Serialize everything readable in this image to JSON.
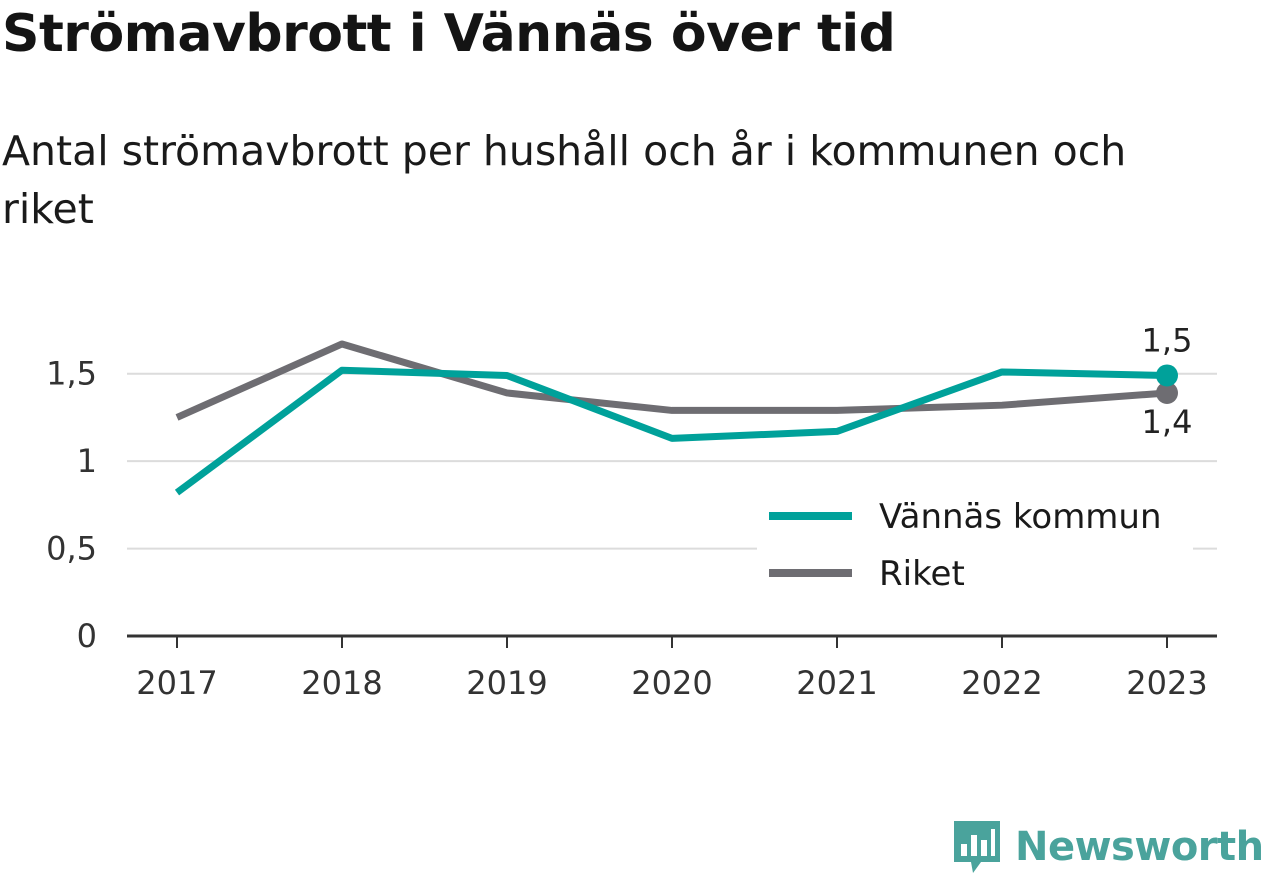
{
  "title": "Strömavbrott i Vännäs över tid",
  "subtitle": "Antal strömavbrott per hushåll och år i kommunen och riket",
  "brand": {
    "name": "Newsworthy",
    "icon": "bar-chart-speech-bubble-icon",
    "color": "#4aa39c"
  },
  "chart_data": {
    "type": "line",
    "x": [
      "2017",
      "2018",
      "2019",
      "2020",
      "2021",
      "2022",
      "2023"
    ],
    "ylim": [
      0,
      1.75
    ],
    "y_ticks": [
      {
        "value": 0,
        "label": "0"
      },
      {
        "value": 0.5,
        "label": "0,5"
      },
      {
        "value": 1,
        "label": "1"
      },
      {
        "value": 1.5,
        "label": "1,5"
      }
    ],
    "grid": true,
    "legend_position": "bottom-right",
    "series": [
      {
        "name": "Vännäs kommun",
        "color": "#00a19a",
        "values": [
          0.82,
          1.52,
          1.49,
          1.13,
          1.17,
          1.51,
          1.49
        ],
        "end_label": "1,5",
        "end_label_position": "above"
      },
      {
        "name": "Riket",
        "color": "#6e6d72",
        "values": [
          1.25,
          1.67,
          1.39,
          1.29,
          1.29,
          1.32,
          1.39
        ],
        "end_label": "1,4",
        "end_label_position": "below"
      }
    ]
  }
}
